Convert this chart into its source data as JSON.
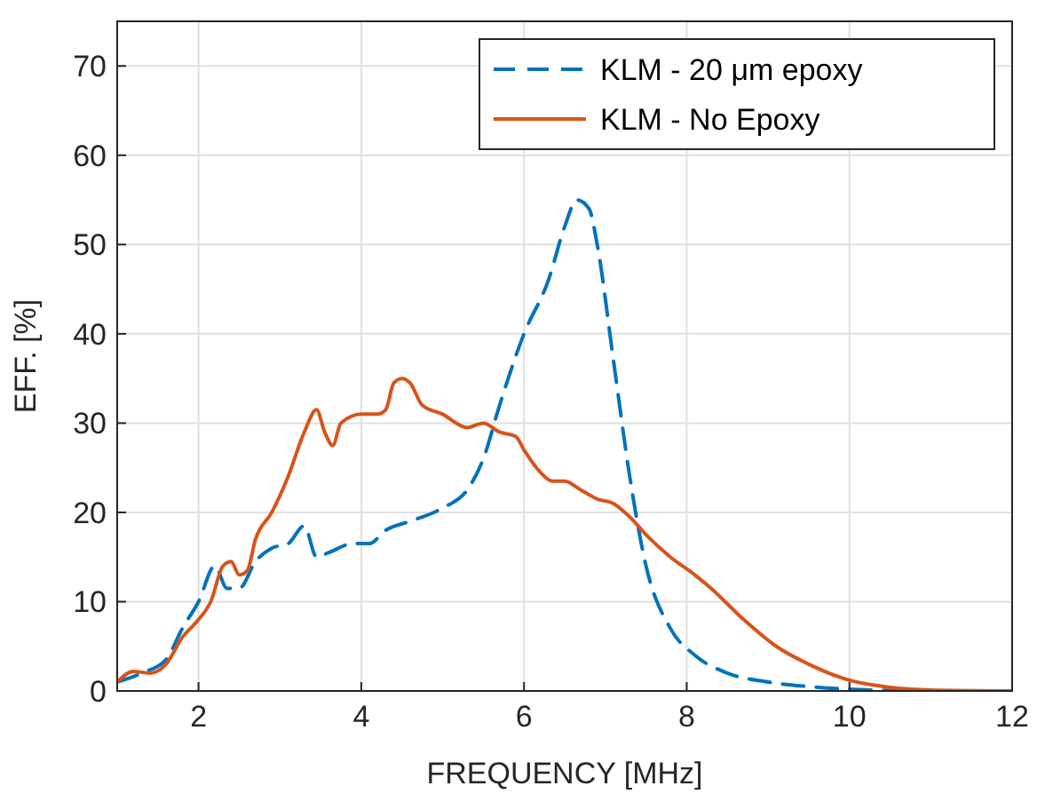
{
  "chart_data": {
    "type": "line",
    "xlabel": "FREQUENCY [MHz]",
    "ylabel": "EFF. [%]",
    "xlim": [
      1,
      12
    ],
    "ylim": [
      0,
      75
    ],
    "xticks": [
      2,
      4,
      6,
      8,
      10,
      12
    ],
    "yticks": [
      0,
      10,
      20,
      30,
      40,
      50,
      60,
      70
    ],
    "grid": true,
    "legend": "top right",
    "series": [
      {
        "name": "KLM - 20 μm epoxy",
        "color": "#0072bd",
        "line_style": "dashed",
        "x": [
          1,
          1.3,
          1.6,
          1.8,
          2.0,
          2.2,
          2.35,
          2.5,
          2.7,
          2.9,
          3.1,
          3.3,
          3.45,
          3.6,
          3.9,
          4.1,
          4.3,
          4.6,
          5.0,
          5.3,
          5.5,
          5.7,
          6.0,
          6.3,
          6.5,
          6.65,
          6.8,
          6.9,
          7.1,
          7.3,
          7.5,
          7.8,
          8.1,
          8.5,
          9,
          9.5,
          10,
          11,
          12
        ],
        "values": [
          1,
          2,
          3.5,
          7,
          10,
          14,
          11.5,
          11.5,
          14.5,
          16,
          16.5,
          18.5,
          15,
          15.5,
          16.5,
          16.5,
          18,
          19,
          20.5,
          22.5,
          26,
          32,
          40,
          46,
          52,
          55,
          54,
          50,
          37,
          24,
          14,
          7,
          4,
          2,
          1,
          0.5,
          0.2,
          0,
          0
        ]
      },
      {
        "name": "KLM - No Epoxy",
        "color": "#d95319",
        "line_style": "solid",
        "x": [
          1,
          1.2,
          1.4,
          1.6,
          1.8,
          2.0,
          2.15,
          2.3,
          2.4,
          2.5,
          2.6,
          2.7,
          2.9,
          3.1,
          3.3,
          3.45,
          3.55,
          3.65,
          3.75,
          4.0,
          4.2,
          4.3,
          4.4,
          4.5,
          4.6,
          4.75,
          5.0,
          5.3,
          5.5,
          5.7,
          5.9,
          6.0,
          6.2,
          6.35,
          6.5,
          6.7,
          6.9,
          7.1,
          7.3,
          7.5,
          7.8,
          8.1,
          8.3,
          8.7,
          9.1,
          9.5,
          10,
          10.5,
          11,
          12
        ],
        "values": [
          1,
          2.2,
          2,
          3,
          6,
          8,
          10,
          14,
          14.5,
          13,
          13.5,
          17,
          20,
          24,
          29,
          31.5,
          29,
          27.5,
          30,
          31,
          31,
          31.5,
          34.5,
          35,
          34.5,
          32,
          31,
          29.5,
          30,
          29,
          28.5,
          27,
          24.5,
          23.5,
          23.5,
          22.5,
          21.5,
          21,
          19.5,
          17.5,
          15,
          13,
          11.5,
          8,
          5,
          3,
          1.2,
          0.4,
          0.1,
          0
        ]
      }
    ]
  }
}
